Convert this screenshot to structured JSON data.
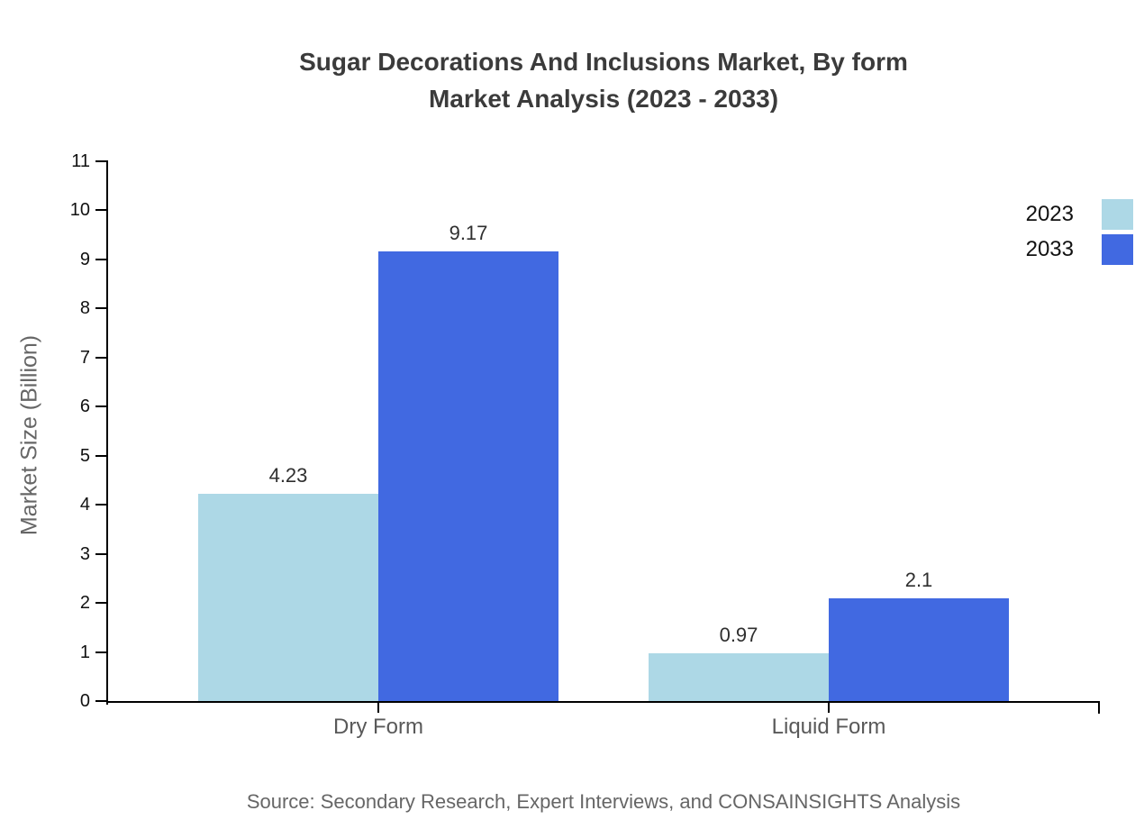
{
  "title": {
    "line1": "Sugar Decorations And Inclusions Market, By form",
    "line2": "Market Analysis (2023 - 2033)"
  },
  "source": "Source: Secondary Research, Expert Interviews, and CONSAINSIGHTS Analysis",
  "chart_data": {
    "type": "bar",
    "title": "Sugar Decorations And Inclusions Market, By form Market Analysis (2023 - 2033)",
    "categories": [
      "Dry Form",
      "Liquid Form"
    ],
    "series": [
      {
        "name": "2023",
        "color": "#ADD8E6",
        "values": [
          4.23,
          0.97
        ],
        "labels": [
          "4.23",
          "0.97"
        ]
      },
      {
        "name": "2033",
        "color": "#4169E1",
        "values": [
          9.17,
          2.1
        ],
        "labels": [
          "9.17",
          "2.1"
        ]
      }
    ],
    "xlabel": "",
    "ylabel": "Market Size (Billion)",
    "ylim": [
      0,
      11
    ],
    "yticks": [
      "0",
      "1",
      "2",
      "3",
      "4",
      "5",
      "6",
      "7",
      "8",
      "9",
      "10",
      "11"
    ],
    "grid": false,
    "legend_position": "upper-right-outside"
  }
}
